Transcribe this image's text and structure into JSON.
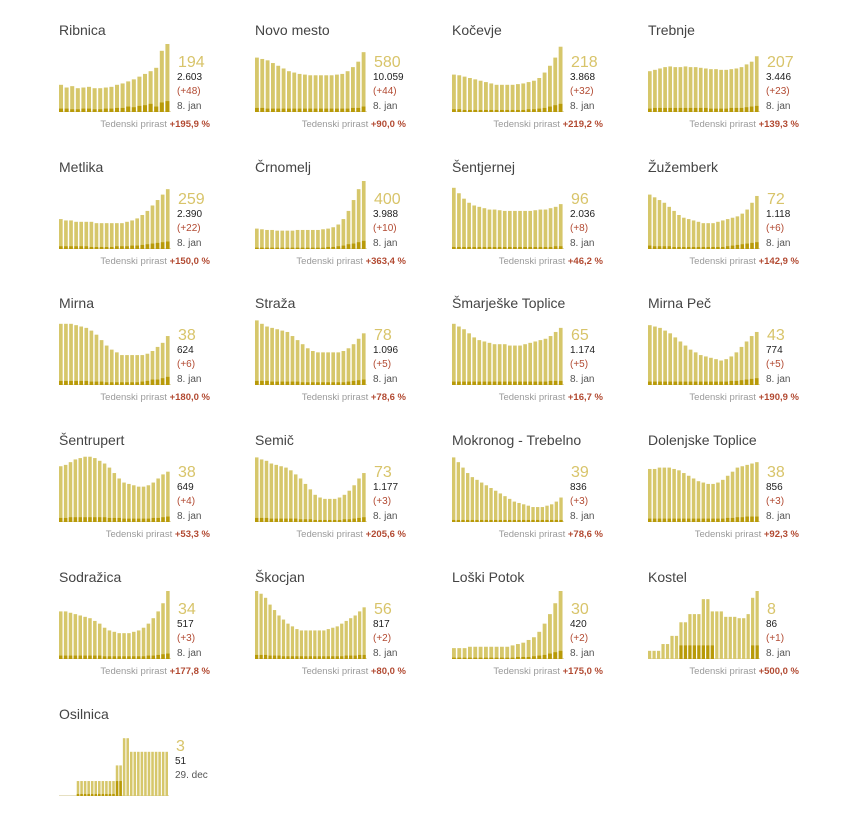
{
  "colors": {
    "bar_total": "#d6c76b",
    "bar_new": "#b89a08",
    "highlight": "#d8c46a",
    "increase": "#b24a32",
    "label": "#444444"
  },
  "week_label": "Tedenski prirast",
  "chart_data": [
    {
      "type": "bar",
      "name": "Ribnica",
      "current": "194",
      "total": "2.603",
      "new": "(+48)",
      "date": "8. jan",
      "weekly": "+195,9 %",
      "values": [
        40,
        36,
        38,
        35,
        36,
        37,
        35,
        35,
        36,
        37,
        40,
        42,
        45,
        48,
        52,
        56,
        60,
        65,
        90,
        100
      ],
      "new_values": [
        5,
        5,
        4,
        4,
        5,
        5,
        4,
        4,
        5,
        5,
        6,
        6,
        8,
        7,
        9,
        10,
        12,
        8,
        14,
        16
      ]
    },
    {
      "type": "bar",
      "name": "Novo mesto",
      "current": "580",
      "total": "10.059",
      "new": "(+44)",
      "date": "8. jan",
      "weekly": "+90,0 %",
      "values": [
        80,
        78,
        76,
        72,
        68,
        64,
        60,
        58,
        56,
        55,
        54,
        54,
        54,
        54,
        54,
        55,
        56,
        60,
        66,
        74,
        88
      ],
      "new_values": [
        6,
        6,
        5,
        5,
        5,
        5,
        5,
        5,
        5,
        5,
        5,
        5,
        5,
        5,
        5,
        5,
        5,
        5,
        6,
        6,
        8
      ]
    },
    {
      "type": "bar",
      "name": "Kočevje",
      "current": "218",
      "total": "3.868",
      "new": "(+32)",
      "date": "8. jan",
      "weekly": "+219,2 %",
      "values": [
        55,
        54,
        52,
        50,
        48,
        46,
        44,
        42,
        40,
        40,
        40,
        40,
        41,
        42,
        44,
        46,
        50,
        58,
        68,
        80,
        96
      ],
      "new_values": [
        4,
        4,
        3,
        3,
        3,
        3,
        3,
        3,
        3,
        3,
        3,
        3,
        3,
        3,
        4,
        4,
        5,
        6,
        8,
        10,
        12
      ]
    },
    {
      "type": "bar",
      "name": "Trebnje",
      "current": "207",
      "total": "3.446",
      "new": "(+23)",
      "date": "8. jan",
      "weekly": "+139,3 %",
      "values": [
        60,
        62,
        64,
        66,
        67,
        66,
        66,
        67,
        66,
        66,
        65,
        64,
        63,
        63,
        62,
        62,
        63,
        64,
        66,
        70,
        74,
        82
      ],
      "new_values": [
        5,
        6,
        6,
        6,
        6,
        6,
        6,
        6,
        6,
        6,
        6,
        6,
        5,
        5,
        5,
        5,
        6,
        6,
        6,
        7,
        8,
        9
      ]
    },
    {
      "type": "bar",
      "name": "Metlika",
      "current": "259",
      "total": "2.390",
      "new": "(+22)",
      "date": "8. jan",
      "weekly": "+150,0 %",
      "values": [
        44,
        42,
        42,
        40,
        40,
        40,
        40,
        38,
        38,
        38,
        38,
        38,
        38,
        40,
        42,
        45,
        50,
        56,
        64,
        72,
        80,
        88
      ],
      "new_values": [
        4,
        4,
        4,
        4,
        4,
        4,
        3,
        3,
        3,
        3,
        3,
        4,
        4,
        4,
        5,
        5,
        6,
        7,
        8,
        9,
        10,
        11
      ]
    },
    {
      "type": "bar",
      "name": "Črnomelj",
      "current": "400",
      "total": "3.988",
      "new": "(+10)",
      "date": "8. jan",
      "weekly": "+363,4 %",
      "values": [
        30,
        29,
        28,
        28,
        27,
        27,
        27,
        27,
        28,
        28,
        28,
        28,
        28,
        29,
        30,
        32,
        36,
        44,
        56,
        72,
        88,
        100
      ],
      "new_values": [
        2,
        2,
        2,
        2,
        2,
        2,
        2,
        2,
        2,
        2,
        2,
        2,
        2,
        2,
        3,
        3,
        4,
        5,
        7,
        8,
        10,
        12
      ]
    },
    {
      "type": "bar",
      "name": "Šentjernej",
      "current": "96",
      "total": "2.036",
      "new": "(+8)",
      "date": "8. jan",
      "weekly": "+46,2 %",
      "values": [
        90,
        82,
        74,
        68,
        64,
        62,
        60,
        58,
        58,
        57,
        56,
        56,
        56,
        56,
        56,
        56,
        57,
        58,
        58,
        60,
        62,
        66
      ],
      "new_values": [
        3,
        3,
        3,
        3,
        3,
        3,
        3,
        3,
        3,
        3,
        3,
        3,
        3,
        3,
        3,
        3,
        3,
        3,
        3,
        3,
        4,
        4
      ]
    },
    {
      "type": "bar",
      "name": "Žužemberk",
      "current": "72",
      "total": "1.118",
      "new": "(+6)",
      "date": "8. jan",
      "weekly": "+142,9 %",
      "values": [
        80,
        76,
        72,
        68,
        62,
        56,
        50,
        46,
        44,
        42,
        40,
        38,
        38,
        38,
        40,
        42,
        44,
        46,
        48,
        52,
        58,
        68,
        78
      ],
      "new_values": [
        5,
        4,
        4,
        4,
        4,
        3,
        3,
        3,
        3,
        3,
        3,
        3,
        3,
        3,
        3,
        3,
        4,
        5,
        6,
        7,
        8,
        9,
        10
      ]
    },
    {
      "type": "bar",
      "name": "Mirna",
      "current": "38",
      "total": "624",
      "new": "(+6)",
      "date": "8. jan",
      "weekly": "+180,0 %",
      "values": [
        90,
        90,
        90,
        88,
        86,
        84,
        80,
        74,
        66,
        58,
        52,
        48,
        44,
        44,
        44,
        44,
        44,
        46,
        50,
        56,
        62,
        72
      ],
      "new_values": [
        6,
        6,
        6,
        6,
        6,
        6,
        5,
        5,
        5,
        4,
        4,
        4,
        4,
        4,
        4,
        4,
        5,
        6,
        8,
        8,
        10,
        12
      ]
    },
    {
      "type": "bar",
      "name": "Straža",
      "current": "78",
      "total": "1.096",
      "new": "(+5)",
      "date": "8. jan",
      "weekly": "+78,6 %",
      "values": [
        95,
        90,
        86,
        84,
        82,
        80,
        78,
        72,
        66,
        60,
        54,
        50,
        48,
        48,
        48,
        48,
        48,
        50,
        54,
        60,
        68,
        76
      ],
      "new_values": [
        6,
        6,
        6,
        5,
        5,
        5,
        5,
        5,
        5,
        4,
        4,
        4,
        4,
        4,
        4,
        4,
        4,
        4,
        5,
        6,
        7,
        8
      ]
    },
    {
      "type": "bar",
      "name": "Šmarješke Toplice",
      "current": "65",
      "total": "1.174",
      "new": "(+5)",
      "date": "8. jan",
      "weekly": "+16,7 %",
      "values": [
        90,
        86,
        82,
        76,
        70,
        66,
        64,
        62,
        60,
        60,
        60,
        58,
        58,
        58,
        60,
        62,
        64,
        66,
        68,
        72,
        78,
        84
      ],
      "new_values": [
        5,
        5,
        5,
        5,
        5,
        5,
        5,
        5,
        5,
        5,
        5,
        5,
        5,
        5,
        5,
        5,
        5,
        5,
        5,
        6,
        6,
        6
      ]
    },
    {
      "type": "bar",
      "name": "Mirna Peč",
      "current": "43",
      "total": "774",
      "new": "(+5)",
      "date": "8. jan",
      "weekly": "+190,9 %",
      "values": [
        88,
        86,
        84,
        80,
        76,
        70,
        64,
        58,
        52,
        48,
        44,
        42,
        40,
        38,
        36,
        38,
        42,
        48,
        56,
        64,
        72,
        78
      ],
      "new_values": [
        5,
        5,
        5,
        5,
        5,
        5,
        5,
        5,
        5,
        5,
        5,
        5,
        5,
        5,
        5,
        5,
        6,
        6,
        7,
        8,
        9,
        10
      ]
    },
    {
      "type": "bar",
      "name": "Šentrupert",
      "current": "38",
      "total": "649",
      "new": "(+4)",
      "date": "8. jan",
      "weekly": "+53,3 %",
      "values": [
        82,
        84,
        88,
        92,
        94,
        96,
        96,
        94,
        90,
        86,
        80,
        72,
        64,
        58,
        56,
        54,
        52,
        52,
        54,
        58,
        64,
        70,
        74
      ],
      "new_values": [
        6,
        6,
        7,
        7,
        7,
        7,
        7,
        7,
        7,
        7,
        6,
        6,
        6,
        5,
        5,
        5,
        5,
        5,
        5,
        6,
        6,
        7,
        8
      ]
    },
    {
      "type": "bar",
      "name": "Semič",
      "current": "73",
      "total": "1.177",
      "new": "(+3)",
      "date": "8. jan",
      "weekly": "+205,6 %",
      "values": [
        95,
        92,
        90,
        86,
        84,
        82,
        80,
        76,
        70,
        64,
        56,
        48,
        40,
        36,
        34,
        34,
        34,
        36,
        40,
        46,
        54,
        64,
        72
      ],
      "new_values": [
        6,
        6,
        6,
        5,
        5,
        5,
        5,
        5,
        5,
        4,
        4,
        4,
        3,
        3,
        3,
        3,
        3,
        3,
        4,
        4,
        5,
        6,
        7
      ]
    },
    {
      "type": "bar",
      "name": "Mokronog - Trebelno",
      "current": "39",
      "total": "836",
      "new": "(+3)",
      "date": "8. jan",
      "weekly": "+78,6 %",
      "values": [
        95,
        88,
        80,
        72,
        66,
        62,
        58,
        54,
        50,
        46,
        42,
        38,
        34,
        30,
        28,
        26,
        24,
        22,
        22,
        22,
        24,
        26,
        30,
        36
      ],
      "new_values": [
        3,
        3,
        3,
        3,
        3,
        3,
        3,
        3,
        3,
        3,
        3,
        3,
        3,
        3,
        3,
        3,
        3,
        3,
        3,
        3,
        3,
        3,
        3,
        3
      ]
    },
    {
      "type": "bar",
      "name": "Dolenjske Toplice",
      "current": "38",
      "total": "856",
      "new": "(+3)",
      "date": "8. jan",
      "weekly": "+92,3 %",
      "values": [
        78,
        78,
        80,
        80,
        80,
        78,
        76,
        72,
        68,
        64,
        60,
        58,
        56,
        56,
        58,
        62,
        68,
        74,
        80,
        82,
        84,
        86,
        88
      ],
      "new_values": [
        5,
        5,
        5,
        5,
        5,
        5,
        5,
        5,
        5,
        5,
        5,
        5,
        5,
        5,
        5,
        5,
        6,
        6,
        7,
        7,
        8,
        8,
        8
      ]
    },
    {
      "type": "bar",
      "name": "Sodražica",
      "current": "34",
      "total": "517",
      "new": "(+3)",
      "date": "8. jan",
      "weekly": "+177,8 %",
      "values": [
        70,
        70,
        68,
        66,
        64,
        62,
        60,
        56,
        52,
        46,
        42,
        40,
        38,
        38,
        38,
        40,
        42,
        46,
        52,
        60,
        70,
        82,
        100
      ],
      "new_values": [
        5,
        5,
        5,
        5,
        5,
        5,
        5,
        5,
        5,
        4,
        4,
        4,
        4,
        4,
        4,
        4,
        4,
        4,
        5,
        5,
        6,
        7,
        8
      ]
    },
    {
      "type": "bar",
      "name": "Škocjan",
      "current": "56",
      "total": "817",
      "new": "(+2)",
      "date": "8. jan",
      "weekly": "+80,0 %",
      "values": [
        100,
        96,
        90,
        80,
        72,
        64,
        58,
        52,
        48,
        44,
        42,
        42,
        42,
        42,
        42,
        42,
        44,
        46,
        48,
        52,
        56,
        60,
        64,
        70,
        76
      ],
      "new_values": [
        6,
        6,
        6,
        5,
        5,
        5,
        4,
        4,
        4,
        4,
        4,
        4,
        4,
        4,
        4,
        4,
        4,
        4,
        4,
        4,
        5,
        5,
        5,
        6,
        6
      ]
    },
    {
      "type": "bar",
      "name": "Loški Potok",
      "current": "30",
      "total": "420",
      "new": "(+2)",
      "date": "8. jan",
      "weekly": "+175,0 %",
      "values": [
        16,
        16,
        16,
        18,
        18,
        18,
        18,
        18,
        18,
        18,
        18,
        20,
        22,
        24,
        28,
        32,
        40,
        52,
        66,
        82,
        100
      ],
      "new_values": [
        2,
        2,
        2,
        2,
        2,
        2,
        2,
        2,
        2,
        2,
        2,
        2,
        3,
        3,
        3,
        4,
        5,
        6,
        8,
        10,
        12
      ]
    },
    {
      "type": "bar",
      "name": "Kostel",
      "current": "8",
      "total": "86",
      "new": "(+1)",
      "date": "8. jan",
      "weekly": "+500,0 %",
      "values": [
        12,
        12,
        12,
        22,
        22,
        34,
        34,
        54,
        54,
        66,
        66,
        66,
        88,
        88,
        70,
        70,
        70,
        62,
        62,
        62,
        60,
        60,
        66,
        90,
        100
      ],
      "new_values": [
        0,
        0,
        0,
        0,
        0,
        0,
        0,
        20,
        20,
        20,
        20,
        20,
        20,
        20,
        20,
        0,
        0,
        0,
        0,
        0,
        0,
        0,
        0,
        20,
        20
      ]
    },
    {
      "type": "bar",
      "name": "Osilnica",
      "current": "3",
      "total": "51",
      "new": "",
      "date": "29. dec",
      "weekly": "",
      "values": [
        0,
        0,
        0,
        0,
        0,
        22,
        22,
        22,
        22,
        22,
        22,
        22,
        22,
        22,
        22,
        22,
        45,
        45,
        85,
        85,
        65,
        65,
        65,
        65,
        65,
        65,
        65,
        65,
        65,
        65,
        65
      ],
      "new_values": [
        0,
        0,
        0,
        0,
        0,
        3,
        3,
        3,
        3,
        3,
        3,
        3,
        3,
        3,
        3,
        3,
        22,
        22,
        0,
        0,
        0,
        0,
        0,
        0,
        0,
        0,
        0,
        0,
        0,
        0,
        0
      ]
    }
  ]
}
